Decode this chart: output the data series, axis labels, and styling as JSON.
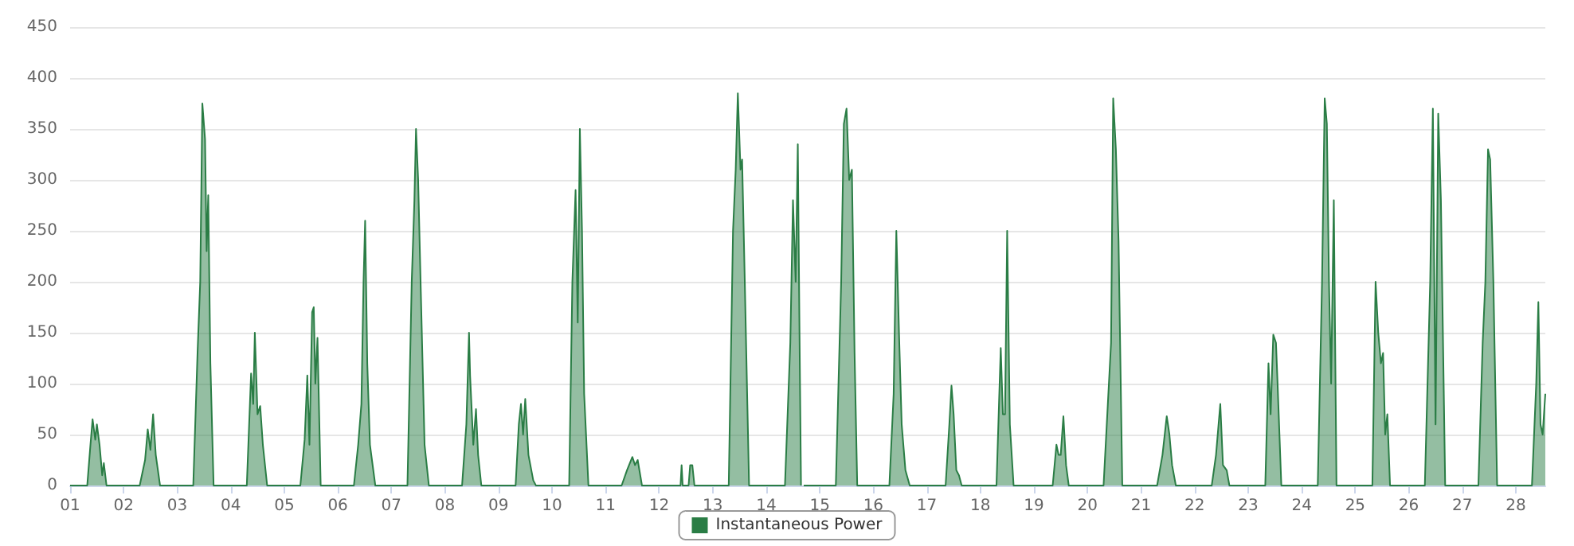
{
  "chart_data": {
    "type": "area",
    "xlim": [
      1,
      28.55
    ],
    "xticks": [
      {
        "value": 1,
        "label": "01"
      },
      {
        "value": 2,
        "label": "02"
      },
      {
        "value": 3,
        "label": "03"
      },
      {
        "value": 4,
        "label": "04"
      },
      {
        "value": 5,
        "label": "05"
      },
      {
        "value": 6,
        "label": "06"
      },
      {
        "value": 7,
        "label": "07"
      },
      {
        "value": 8,
        "label": "08"
      },
      {
        "value": 9,
        "label": "09"
      },
      {
        "value": 10,
        "label": "10"
      },
      {
        "value": 11,
        "label": "11"
      },
      {
        "value": 12,
        "label": "12"
      },
      {
        "value": 13,
        "label": "13"
      },
      {
        "value": 14,
        "label": "14"
      },
      {
        "value": 15,
        "label": "15"
      },
      {
        "value": 16,
        "label": "16"
      },
      {
        "value": 17,
        "label": "17"
      },
      {
        "value": 18,
        "label": "18"
      },
      {
        "value": 19,
        "label": "19"
      },
      {
        "value": 20,
        "label": "20"
      },
      {
        "value": 21,
        "label": "21"
      },
      {
        "value": 22,
        "label": "22"
      },
      {
        "value": 23,
        "label": "23"
      },
      {
        "value": 24,
        "label": "24"
      },
      {
        "value": 25,
        "label": "25"
      },
      {
        "value": 26,
        "label": "26"
      },
      {
        "value": 27,
        "label": "27"
      },
      {
        "value": 28,
        "label": "28"
      }
    ],
    "ylim": [
      0,
      450
    ],
    "yticks": [
      0,
      50,
      100,
      150,
      200,
      250,
      300,
      350,
      400,
      450
    ],
    "grid": "y",
    "legend": "bottom",
    "marker": "none",
    "series": [
      {
        "name": "Instantaneous Power",
        "color": "#2a7d45",
        "x": [
          1,
          1.32,
          1.38,
          1.42,
          1.47,
          1.5,
          1.55,
          1.6,
          1.63,
          1.68,
          2.3,
          2.4,
          2.45,
          2.5,
          2.55,
          2.6,
          2.68,
          3.3,
          3.38,
          3.43,
          3.47,
          3.52,
          3.55,
          3.58,
          3.62,
          3.68,
          4.3,
          4.38,
          4.42,
          4.45,
          4.5,
          4.55,
          4.6,
          4.68,
          5.3,
          5.38,
          5.43,
          5.47,
          5.52,
          5.55,
          5.58,
          5.62,
          5.68,
          6.3,
          6.38,
          6.44,
          6.48,
          6.51,
          6.55,
          6.6,
          6.7,
          7.3,
          7.38,
          7.43,
          7.46,
          7.5,
          7.55,
          7.62,
          7.7,
          8.32,
          8.4,
          8.45,
          8.47,
          8.53,
          8.58,
          8.62,
          8.68,
          9.32,
          9.38,
          9.42,
          9.46,
          9.5,
          9.56,
          9.65,
          9.7,
          10.32,
          10.38,
          10.44,
          10.48,
          10.52,
          10.56,
          10.6,
          10.68,
          11.3,
          11.4,
          11.5,
          11.55,
          11.6,
          11.68,
          12.4,
          12.42,
          12.44,
          12.55,
          12.58,
          12.62,
          12.66,
          13.3,
          13.38,
          13.43,
          13.47,
          13.52,
          13.55,
          13.6,
          13.68,
          14.35,
          14.45,
          14.5,
          14.55,
          14.59,
          14.62,
          14.65,
          14.67,
          14.7,
          15.3,
          15.4,
          15.45,
          15.5,
          15.55,
          15.6,
          15.65,
          15.7,
          16.3,
          16.38,
          16.43,
          16.48,
          16.53,
          16.6,
          16.68,
          17.35,
          17.42,
          17.46,
          17.5,
          17.55,
          17.6,
          17.65,
          18.3,
          18.38,
          18.42,
          18.46,
          18.5,
          18.55,
          18.62,
          19.35,
          19.42,
          19.46,
          19.5,
          19.55,
          19.6,
          19.65,
          20.3,
          20.38,
          20.44,
          20.48,
          20.53,
          20.58,
          20.65,
          21.3,
          21.4,
          21.48,
          21.53,
          21.58,
          21.65,
          22.32,
          22.4,
          22.48,
          22.53,
          22.6,
          22.65,
          23.32,
          23.38,
          23.42,
          23.47,
          23.52,
          23.55,
          23.62,
          24.3,
          24.38,
          24.43,
          24.47,
          24.51,
          24.55,
          24.6,
          24.65,
          25.32,
          25.38,
          25.43,
          25.48,
          25.52,
          25.56,
          25.6,
          25.65,
          26.3,
          26.4,
          26.45,
          26.5,
          26.55,
          26.6,
          26.68,
          27.3,
          27.38,
          27.43,
          27.48,
          27.52,
          27.58,
          27.65,
          28.3,
          28.38,
          28.42,
          28.46,
          28.5,
          28.55
        ],
        "values": [
          0,
          0,
          40,
          65,
          45,
          60,
          40,
          10,
          22,
          0,
          0,
          25,
          55,
          35,
          70,
          30,
          0,
          0,
          130,
          200,
          375,
          340,
          230,
          285,
          120,
          0,
          0,
          110,
          80,
          150,
          70,
          78,
          40,
          0,
          0,
          45,
          108,
          40,
          170,
          175,
          100,
          145,
          0,
          0,
          40,
          80,
          200,
          260,
          120,
          40,
          0,
          0,
          200,
          280,
          350,
          300,
          190,
          40,
          0,
          0,
          60,
          150,
          108,
          40,
          75,
          30,
          0,
          0,
          60,
          80,
          50,
          85,
          30,
          5,
          0,
          0,
          200,
          290,
          160,
          350,
          250,
          90,
          0,
          0,
          15,
          28,
          20,
          25,
          0,
          0,
          20,
          0,
          0,
          20,
          20,
          0,
          0,
          250,
          310,
          385,
          310,
          320,
          200,
          0,
          0,
          140,
          280,
          200,
          335,
          160,
          0,
          null,
          0,
          0,
          200,
          355,
          370,
          300,
          310,
          130,
          0,
          0,
          90,
          250,
          150,
          60,
          15,
          0,
          0,
          60,
          98,
          70,
          15,
          10,
          0,
          0,
          135,
          70,
          70,
          250,
          60,
          0,
          0,
          40,
          30,
          30,
          68,
          20,
          0,
          0,
          80,
          140,
          380,
          330,
          240,
          0,
          0,
          30,
          68,
          50,
          20,
          0,
          0,
          30,
          80,
          20,
          15,
          0,
          0,
          120,
          70,
          148,
          140,
          100,
          0,
          0,
          200,
          380,
          355,
          200,
          100,
          280,
          0,
          0,
          200,
          150,
          120,
          130,
          50,
          70,
          0,
          0,
          200,
          370,
          60,
          365,
          280,
          0,
          0,
          140,
          200,
          330,
          320,
          200,
          0,
          0,
          100,
          180,
          60,
          50,
          90
        ]
      }
    ]
  }
}
